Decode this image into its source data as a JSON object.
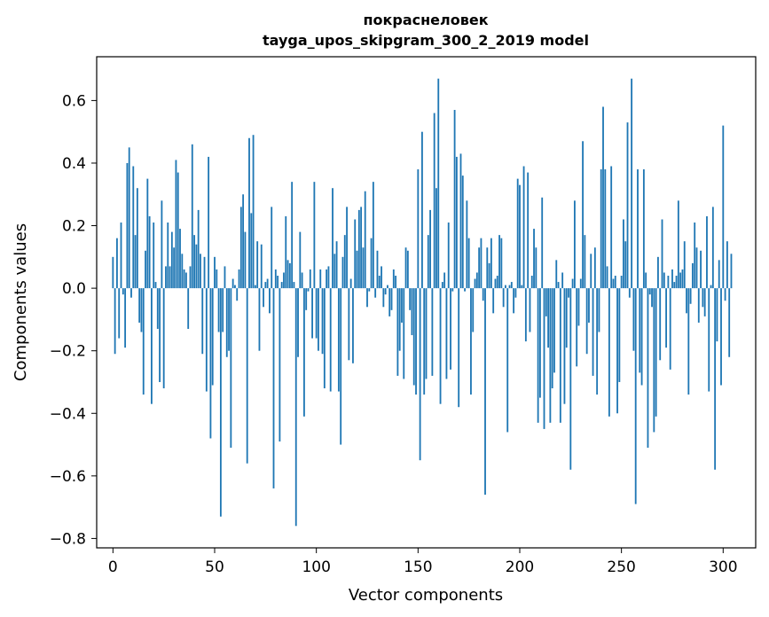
{
  "chart_data": {
    "type": "bar",
    "title_line1": "покраснеловек",
    "title_line2": "tayga_upos_skipgram_300_2_2019 model",
    "xlabel": "Vector components",
    "ylabel": "Components values",
    "xlim": [
      -8,
      316
    ],
    "ylim": [
      -0.83,
      0.74
    ],
    "xticks": [
      0,
      50,
      100,
      150,
      200,
      250,
      300
    ],
    "xtick_labels": [
      "0",
      "50",
      "100",
      "150",
      "200",
      "250",
      "300"
    ],
    "yticks": [
      0.6,
      0.4,
      0.2,
      0.0,
      -0.2,
      -0.4,
      -0.6,
      -0.8
    ],
    "ytick_labels": [
      "0.6",
      "0.4",
      "0.2",
      "0.0",
      "−0.2",
      "−0.4",
      "−0.6",
      "−0.8"
    ],
    "bar_color": "#1f77b4",
    "grid": false,
    "series": [
      {
        "values": [
          0.1,
          -0.21,
          0.16,
          -0.16,
          0.21,
          -0.02,
          -0.19,
          0.4,
          0.45,
          -0.03,
          0.39,
          0.17,
          0.32,
          -0.11,
          -0.14,
          -0.34,
          0.12,
          0.35,
          0.23,
          -0.37,
          0.21,
          0.02,
          -0.13,
          -0.3,
          0.28,
          -0.32,
          0.07,
          0.21,
          0.07,
          0.18,
          0.13,
          0.41,
          0.37,
          0.19,
          0.11,
          0.06,
          0.05,
          -0.13,
          0.07,
          0.46,
          0.17,
          0.14,
          0.25,
          0.11,
          -0.21,
          0.1,
          -0.33,
          0.42,
          -0.48,
          -0.31,
          0.1,
          0.06,
          -0.14,
          -0.73,
          -0.14,
          0.07,
          -0.22,
          -0.2,
          -0.51,
          0.03,
          0.01,
          -0.04,
          0.06,
          0.26,
          0.3,
          0.18,
          -0.56,
          0.48,
          0.24,
          0.49,
          0.01,
          0.15,
          -0.2,
          0.14,
          -0.06,
          0.02,
          0.03,
          -0.08,
          0.26,
          -0.64,
          0.06,
          0.04,
          -0.49,
          0.02,
          0.05,
          0.23,
          0.09,
          0.08,
          0.34,
          0.02,
          -0.76,
          -0.22,
          0.18,
          0.05,
          -0.41,
          -0.07,
          -0.01,
          0.06,
          -0.16,
          0.34,
          -0.16,
          -0.2,
          0.06,
          -0.21,
          -0.32,
          0.06,
          0.07,
          -0.33,
          0.32,
          0.11,
          0.15,
          -0.33,
          -0.5,
          0.1,
          0.17,
          0.26,
          -0.23,
          0.03,
          -0.24,
          0.22,
          0.12,
          0.25,
          0.26,
          0.13,
          0.31,
          -0.06,
          -0.01,
          0.16,
          0.34,
          -0.03,
          0.12,
          0.04,
          0.07,
          -0.06,
          -0.02,
          0.01,
          -0.09,
          -0.07,
          0.06,
          0.04,
          -0.28,
          -0.2,
          -0.11,
          -0.29,
          0.13,
          0.12,
          -0.07,
          -0.15,
          -0.31,
          -0.34,
          0.38,
          -0.55,
          0.5,
          -0.34,
          -0.29,
          0.17,
          0.25,
          -0.28,
          0.56,
          0.32,
          0.67,
          -0.37,
          0.02,
          0.05,
          -0.29,
          0.21,
          -0.26,
          -0.01,
          0.57,
          0.42,
          -0.38,
          0.43,
          0.36,
          -0.01,
          0.28,
          0.16,
          -0.34,
          -0.14,
          0.03,
          0.05,
          0.13,
          0.16,
          -0.04,
          -0.66,
          0.13,
          0.08,
          0.16,
          -0.08,
          0.03,
          0.04,
          0.17,
          0.16,
          -0.06,
          0.01,
          -0.46,
          0.01,
          0.02,
          -0.08,
          -0.03,
          0.35,
          0.33,
          0.01,
          0.39,
          -0.17,
          0.37,
          -0.14,
          0.04,
          0.19,
          0.13,
          -0.43,
          -0.35,
          0.29,
          -0.45,
          -0.09,
          -0.19,
          -0.43,
          -0.32,
          -0.27,
          0.09,
          0.02,
          -0.43,
          0.05,
          -0.37,
          -0.19,
          -0.03,
          -0.58,
          0.03,
          0.28,
          -0.25,
          -0.12,
          0.03,
          0.47,
          0.17,
          -0.21,
          -0.11,
          0.11,
          -0.28,
          0.13,
          -0.34,
          -0.14,
          0.38,
          0.58,
          0.38,
          0.07,
          -0.41,
          0.39,
          0.03,
          0.04,
          -0.4,
          -0.3,
          0.04,
          0.22,
          0.15,
          0.53,
          -0.03,
          0.67,
          -0.2,
          -0.69,
          0.38,
          -0.27,
          -0.31,
          0.38,
          0.05,
          -0.51,
          -0.02,
          -0.06,
          -0.46,
          -0.41,
          0.1,
          -0.23,
          0.22,
          0.05,
          -0.19,
          0.04,
          -0.26,
          0.06,
          0.02,
          0.04,
          0.28,
          0.05,
          0.06,
          0.15,
          -0.08,
          -0.34,
          -0.05,
          0.08,
          0.21,
          0.13,
          -0.11,
          0.12,
          -0.06,
          -0.09,
          0.23,
          -0.33,
          0.01,
          0.26,
          -0.58,
          -0.17,
          0.09,
          -0.31,
          0.52,
          -0.04,
          0.15,
          -0.22,
          0.11
        ]
      }
    ]
  }
}
